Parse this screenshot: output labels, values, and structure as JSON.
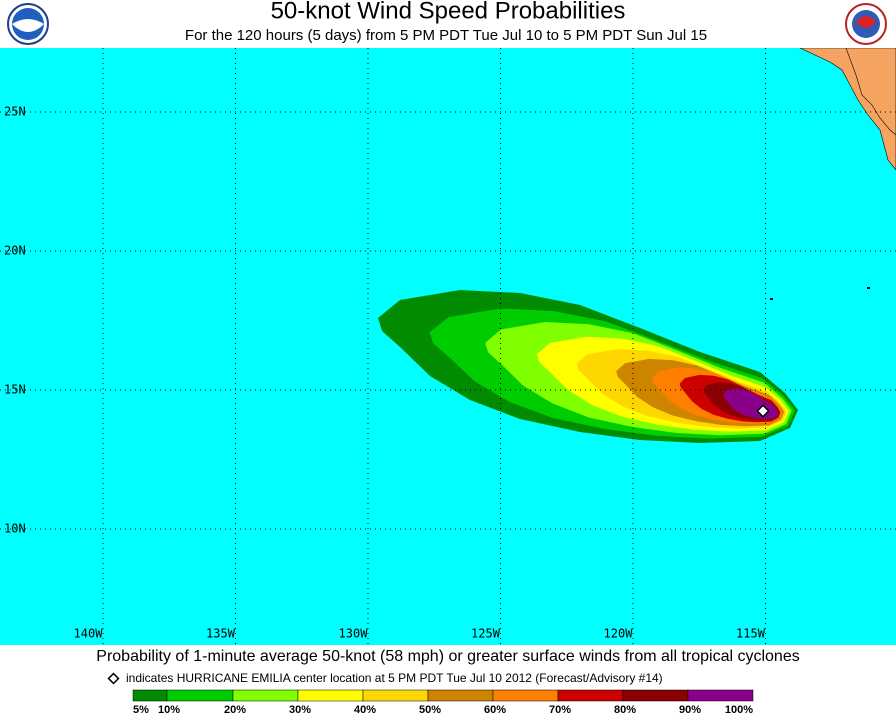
{
  "header": {
    "title": "50-knot Wind Speed Probabilities",
    "subtitle": "For the 120 hours (5 days) from 5 PM PDT Tue Jul 10 to 5 PM PDT Sun Jul 15"
  },
  "map": {
    "latitude_labels": [
      "25N",
      "20N",
      "15N",
      "10N"
    ],
    "longitude_labels": [
      "140W",
      "135W",
      "130W",
      "125W",
      "120W",
      "115W"
    ]
  },
  "footer": {
    "caption": "Probability of 1-minute average 50-knot (58 mph) or greater surface winds from all tropical cyclones",
    "note": "indicates HURRICANE EMILIA center location at 5 PM PDT Tue Jul 10 2012 (Forecast/Advisory #14)",
    "legend_labels": [
      "5%",
      "10%",
      "20%",
      "30%",
      "40%",
      "50%",
      "60%",
      "70%",
      "80%",
      "90%",
      "100%"
    ]
  }
}
